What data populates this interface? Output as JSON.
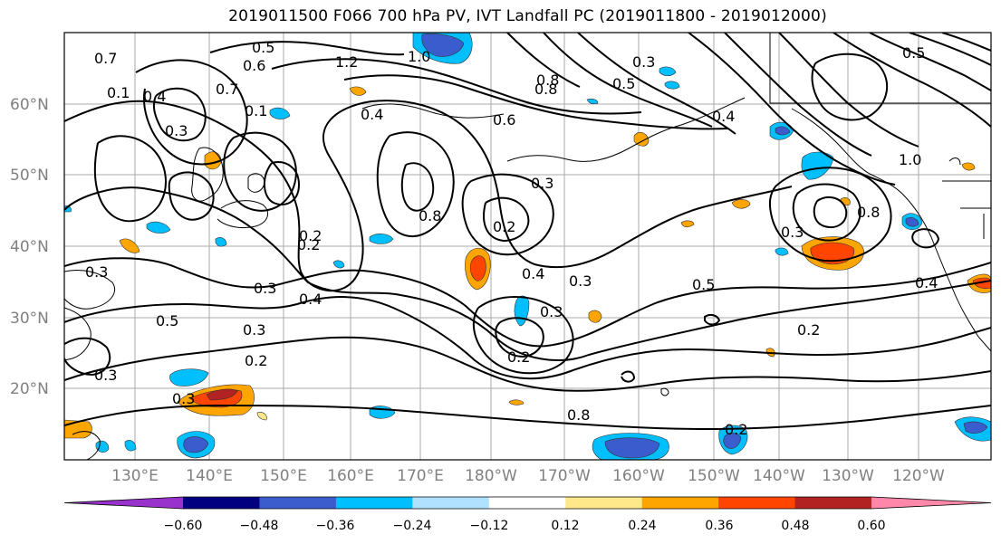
{
  "title": "2019011500 F066 700 hPa PV, IVT Landfall PC (2019011800 - 2019012000)",
  "lat_labels": [
    "60°N",
    "50°N",
    "40°N",
    "30°N",
    "20°N"
  ],
  "lon_labels": [
    "130°E",
    "140°E",
    "150°E",
    "160°E",
    "170°E",
    "180°W",
    "170°W",
    "160°W",
    "150°W",
    "140°W",
    "130°W",
    "120°W"
  ],
  "colorbar": {
    "ticks": [
      "−0.60",
      "−0.48",
      "−0.36",
      "−0.24",
      "−0.12",
      "0.12",
      "0.24",
      "0.36",
      "0.48",
      "0.60"
    ],
    "colors": [
      "#9932cc",
      "#000080",
      "#3a5ccc",
      "#00bfff",
      "#b0e2ff",
      "#ffffff",
      "#ffe88a",
      "#ffa500",
      "#ff4500",
      "#b22222",
      "#ff88aa"
    ]
  },
  "contour_labels": [
    "0.7",
    "0.5",
    "0.6",
    "1.2",
    "1.0",
    "0.8",
    "0.7",
    "0.4",
    "0.3",
    "0.1",
    "0.3",
    "0.5",
    "0.2",
    "0.6",
    "0.8",
    "0.2",
    "0.3",
    "0.4",
    "0.3",
    "0.3",
    "0.5",
    "0.4",
    "0.3",
    "0.3",
    "0.2",
    "0.2",
    "0.2",
    "0.3",
    "0.5",
    "0.3",
    "0.3",
    "0.8",
    "0.4",
    "1.0",
    "0.8",
    "0.3",
    "0.4",
    "0.2",
    "0.4",
    "0.2",
    "0.1",
    "0.5",
    "0.8"
  ]
}
